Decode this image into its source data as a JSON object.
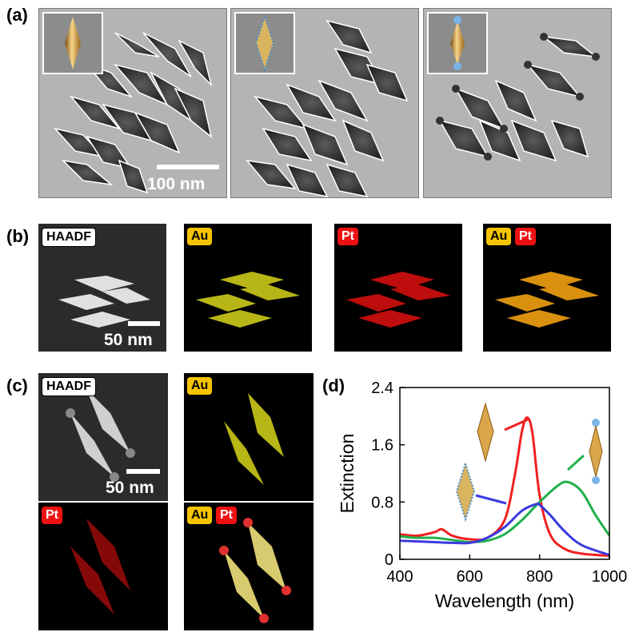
{
  "panels": {
    "a": {
      "label": "(a)",
      "scale_bar": "100 nm"
    },
    "b": {
      "label": "(b)",
      "tiles": [
        {
          "tag": "HAADF",
          "scale_bar": "50 nm"
        },
        {
          "tag": "Au"
        },
        {
          "tag": "Pt"
        },
        {
          "tags": [
            "Au",
            "Pt"
          ]
        }
      ]
    },
    "c": {
      "label": "(c)",
      "tiles": [
        {
          "tag": "HAADF",
          "scale_bar": "50 nm"
        },
        {
          "tag": "Au"
        },
        {
          "tag": "Pt"
        },
        {
          "tags": [
            "Au",
            "Pt"
          ]
        }
      ]
    },
    "d": {
      "label": "(d)"
    }
  },
  "colors": {
    "au": "#f5c400",
    "pt": "#ee1111",
    "red": "#f02020",
    "green": "#22b04a",
    "blue": "#3a3ae0"
  },
  "chart_data": {
    "type": "line",
    "xlabel": "Wavelength (nm)",
    "ylabel": "Extinction",
    "xlim": [
      400,
      1000
    ],
    "ylim": [
      0,
      2.4
    ],
    "xticks": [
      "400",
      "600",
      "800",
      "1000"
    ],
    "yticks": [
      "0",
      "0.8",
      "1.6",
      "2.4"
    ],
    "series": [
      {
        "color": "red",
        "x": [
          400,
          450,
          500,
          520,
          550,
          600,
          650,
          700,
          730,
          750,
          765,
          780,
          800,
          830,
          870,
          920,
          1000
        ],
        "y": [
          0.35,
          0.33,
          0.38,
          0.42,
          0.33,
          0.28,
          0.3,
          0.55,
          1.2,
          1.8,
          1.98,
          1.75,
          0.9,
          0.35,
          0.15,
          0.08,
          0.05
        ]
      },
      {
        "color": "green",
        "x": [
          400,
          450,
          500,
          550,
          600,
          650,
          700,
          750,
          800,
          850,
          880,
          920,
          960,
          1000
        ],
        "y": [
          0.32,
          0.3,
          0.3,
          0.27,
          0.24,
          0.26,
          0.35,
          0.55,
          0.8,
          1.02,
          1.08,
          0.95,
          0.62,
          0.33
        ]
      },
      {
        "color": "blue",
        "x": [
          400,
          450,
          500,
          550,
          600,
          650,
          700,
          750,
          790,
          800,
          830,
          870,
          920,
          1000
        ],
        "y": [
          0.26,
          0.25,
          0.24,
          0.23,
          0.23,
          0.3,
          0.45,
          0.68,
          0.77,
          0.76,
          0.62,
          0.4,
          0.2,
          0.06
        ]
      }
    ]
  }
}
